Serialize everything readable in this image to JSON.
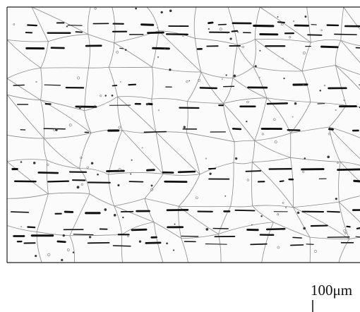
{
  "scale_bar": {
    "label": "100μm"
  }
}
